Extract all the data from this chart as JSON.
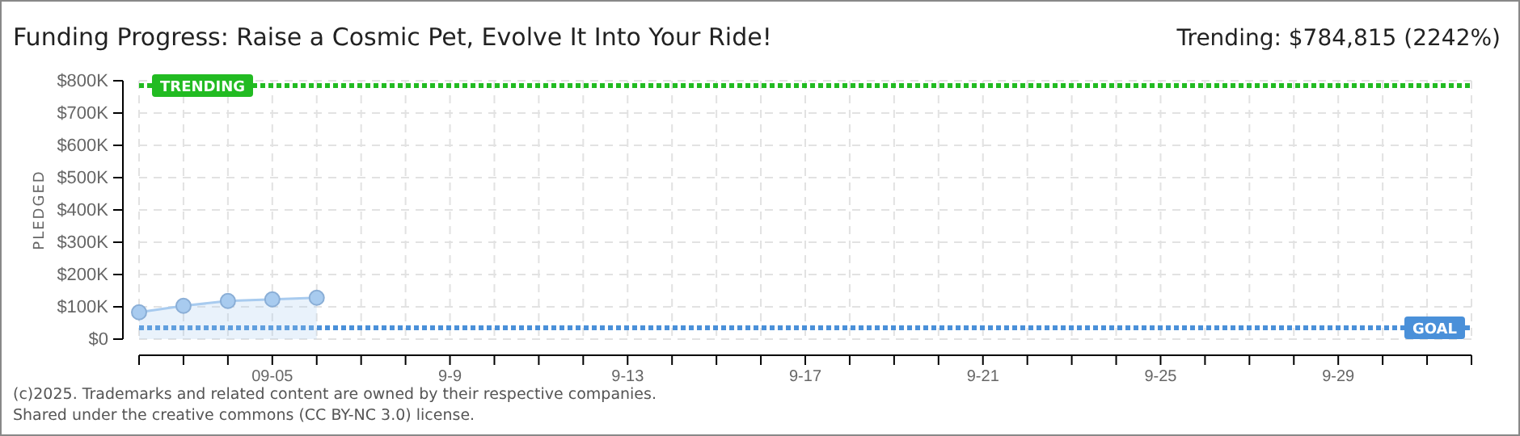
{
  "chart_data": {
    "type": "area",
    "title": "Funding Progress: Raise a Cosmic Pet, Evolve It Into Your Ride!",
    "ylabel": "PLEDGED",
    "x": [
      "2025-09-02",
      "2025-09-03",
      "2025-09-04",
      "2025-09-05",
      "2025-09-06"
    ],
    "series": [
      {
        "color": "#a8cbef",
        "values": [
          83000,
          103000,
          118000,
          123000,
          128000
        ]
      }
    ],
    "marker": "circle",
    "grid": true,
    "xlim": [
      "2025-09-02",
      "2025-10-02"
    ],
    "xticks": [
      {
        "value": "2025-09-02",
        "label": null
      },
      {
        "value": "2025-09-03",
        "label": null
      },
      {
        "value": "2025-09-04",
        "label": null
      },
      {
        "value": "2025-09-05",
        "label": "09-05"
      },
      {
        "value": "2025-09-06",
        "label": null
      },
      {
        "value": "2025-09-07",
        "label": null
      },
      {
        "value": "2025-09-08",
        "label": null
      },
      {
        "value": "2025-09-09",
        "label": "9-9"
      },
      {
        "value": "2025-09-10",
        "label": null
      },
      {
        "value": "2025-09-11",
        "label": null
      },
      {
        "value": "2025-09-12",
        "label": null
      },
      {
        "value": "2025-09-13",
        "label": "9-13"
      },
      {
        "value": "2025-09-14",
        "label": null
      },
      {
        "value": "2025-09-15",
        "label": null
      },
      {
        "value": "2025-09-16",
        "label": null
      },
      {
        "value": "2025-09-17",
        "label": "9-17"
      },
      {
        "value": "2025-09-18",
        "label": null
      },
      {
        "value": "2025-09-19",
        "label": null
      },
      {
        "value": "2025-09-20",
        "label": null
      },
      {
        "value": "2025-09-21",
        "label": "9-21"
      },
      {
        "value": "2025-09-22",
        "label": null
      },
      {
        "value": "2025-09-23",
        "label": null
      },
      {
        "value": "2025-09-24",
        "label": null
      },
      {
        "value": "2025-09-25",
        "label": "9-25"
      },
      {
        "value": "2025-09-26",
        "label": null
      },
      {
        "value": "2025-09-27",
        "label": null
      },
      {
        "value": "2025-09-28",
        "label": null
      },
      {
        "value": "2025-09-29",
        "label": "9-29"
      },
      {
        "value": "2025-09-30",
        "label": null
      },
      {
        "value": "2025-10-01",
        "label": null
      },
      {
        "value": "2025-10-02",
        "label": null
      }
    ],
    "ylim": [
      0,
      800000
    ],
    "yticks": [
      {
        "value": 0,
        "label": "$0"
      },
      {
        "value": 100000,
        "label": "$100K"
      },
      {
        "value": 200000,
        "label": "$200K"
      },
      {
        "value": 300000,
        "label": "$300K"
      },
      {
        "value": 400000,
        "label": "$400K"
      },
      {
        "value": 500000,
        "label": "$500K"
      },
      {
        "value": 600000,
        "label": "$600K"
      },
      {
        "value": 700000,
        "label": "$700K"
      },
      {
        "value": 800000,
        "label": "$800K"
      }
    ],
    "ref_lines": [
      {
        "axis": "y",
        "value": 784815,
        "label": "TRENDING",
        "color": "#22bb22",
        "line_style": "dotted"
      },
      {
        "axis": "y",
        "value": 35000,
        "label": "GOAL",
        "color": "#4a90d9",
        "line_style": "dotted"
      }
    ],
    "annotations": [
      "Trending: $784,815 (2242%)",
      "(c)2025. Trademarks and related content are owned by their respective companies.",
      "Shared under the creative commons (CC BY-NC 3.0) license."
    ]
  }
}
